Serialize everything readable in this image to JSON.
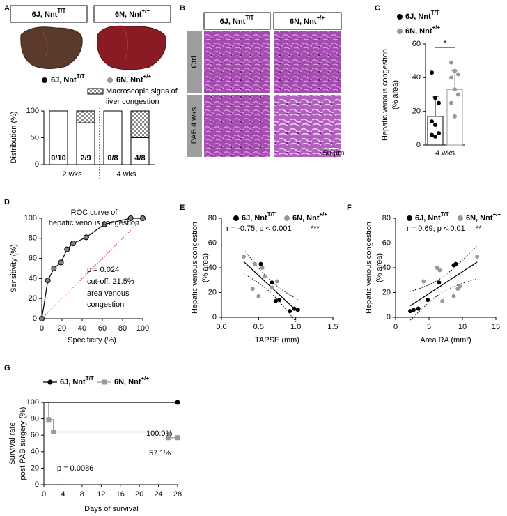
{
  "panel_a_images": {
    "labels": [
      {
        "name": "6J, Nnt",
        "sup": "T/T"
      },
      {
        "name": "6N, Nnt",
        "sup": "+/+"
      }
    ],
    "legend": [
      {
        "name": "6J, Nnt",
        "sup": "T/T",
        "color": "#000000"
      },
      {
        "name": "6N, Nnt",
        "sup": "+/+",
        "color": "#999999"
      }
    ]
  },
  "panel_b": {
    "panel": "B",
    "columns": [
      {
        "name": "6J, Nnt",
        "sup": "T/T"
      },
      {
        "name": "6N, Nnt",
        "sup": "+/+"
      }
    ],
    "rows": [
      "Ctrl",
      "PAB 4 wks"
    ],
    "scale_bar": "50 µm"
  },
  "chart_data": [
    {
      "panel": "A",
      "type": "stacked_bar",
      "ylabel": "Distribution (%)",
      "ylim": [
        0,
        100
      ],
      "yticks": [
        0,
        50,
        100
      ],
      "categories": [
        null,
        null,
        null,
        null
      ],
      "groups": [
        "2 wks",
        "4 wks"
      ],
      "series": [
        {
          "color": "#ffffff",
          "values": [
            100,
            77.8,
            100,
            50
          ]
        },
        {
          "name": [
            "Macroscopic signs of",
            "liver congestion"
          ],
          "color": "#999999",
          "pattern": "checker",
          "values": [
            0,
            22.2,
            0,
            50
          ],
          "value_labels": [
            "0/10",
            "2/9",
            "0/8",
            "4/8"
          ]
        }
      ]
    },
    {
      "panel": "C",
      "type": "bar",
      "ylabel": [
        "Hepatic venous congestion",
        "(% area)"
      ],
      "ylim": [
        0,
        60
      ],
      "yticks": [
        0,
        20,
        40,
        60
      ],
      "categories": [
        "4 wks"
      ],
      "series": [
        {
          "name": "6J, Nnt",
          "name_sup": "T/T",
          "color": "#000000",
          "values": [
            17
          ],
          "error": [
            12
          ],
          "points": [
            43,
            28,
            25,
            14,
            12,
            7,
            6,
            5
          ]
        },
        {
          "name": "6N, Nnt",
          "name_sup": "+/+",
          "color": "#999999",
          "values": [
            33
          ],
          "error": [
            11
          ],
          "points": [
            49,
            44,
            42,
            40,
            33,
            30,
            25,
            17
          ]
        }
      ],
      "annotations": [
        "*"
      ]
    },
    {
      "panel": "D",
      "type": "line",
      "title": [
        "ROC curve of",
        "hepatic venous congestion"
      ],
      "xlabel": "Specificity (%)",
      "ylabel": "Sensitivity (%)",
      "xlim": [
        0,
        100
      ],
      "ylim": [
        0,
        100
      ],
      "xticks": [
        0,
        20,
        40,
        60,
        80,
        100
      ],
      "yticks": [
        0,
        20,
        40,
        60,
        80,
        100
      ],
      "x": [
        0,
        6,
        12,
        19,
        25,
        31,
        44,
        62,
        88,
        100
      ],
      "series": [
        {
          "color": "#000000",
          "marker_color": "#808080",
          "values": [
            0,
            38,
            50,
            56,
            69,
            75,
            81,
            94,
            100,
            100
          ]
        }
      ],
      "reference_line": {
        "color": "#e03030"
      },
      "annotations": [
        "p = 0.024",
        "cut-off: 21.5%",
        "area venous",
        "congestion"
      ]
    },
    {
      "panel": "E",
      "type": "scatter",
      "xlabel": "TAPSE (mm)",
      "ylabel": [
        "Hepatic venous congestion",
        "(% area)"
      ],
      "xlim": [
        0,
        1.5
      ],
      "ylim": [
        0,
        80
      ],
      "xticks": [
        {
          "value": 0,
          "label": "0.0"
        },
        0.5,
        {
          "value": 1,
          "label": "1.0"
        },
        1.5
      ],
      "yticks": [
        0,
        20,
        40,
        60,
        80
      ],
      "series": [
        {
          "name": "6J, Nnt",
          "name_sup": "T/T",
          "color": "#000000",
          "x": [
            0.53,
            0.68,
            0.73,
            0.78,
            0.92,
            0.98,
            1.03
          ],
          "values": [
            43,
            28,
            13,
            14,
            5,
            7,
            6
          ]
        },
        {
          "name": "6N, Nnt",
          "name_sup": "+/+",
          "color": "#999999",
          "x": [
            0.3,
            0.42,
            0.45,
            0.5,
            0.55,
            0.58,
            0.68,
            0.75
          ],
          "values": [
            49,
            23,
            43,
            17,
            40,
            33,
            24,
            29
          ]
        }
      ],
      "fit": true,
      "annotations": [
        "r = -0.75; p < 0.001",
        "***"
      ]
    },
    {
      "panel": "F",
      "type": "scatter",
      "xlabel": "Area RA (mm²)",
      "ylabel": [
        "Hepatic venous congestion",
        "(% area)"
      ],
      "xlim": [
        0,
        15
      ],
      "ylim": [
        0,
        80
      ],
      "xticks": [
        0,
        5,
        10,
        15
      ],
      "yticks": [
        0,
        20,
        40,
        60,
        80
      ],
      "series": [
        {
          "name": "6J, Nnt",
          "name_sup": "T/T",
          "color": "#000000",
          "x": [
            2.2,
            2.7,
            3.4,
            4.8,
            6.5,
            8.7,
            9.0
          ],
          "values": [
            5,
            6,
            7,
            14,
            28,
            42,
            43
          ]
        },
        {
          "name": "6N, Nnt",
          "name_sup": "+/+",
          "color": "#999999",
          "x": [
            4.2,
            6.2,
            6.6,
            8.7,
            9.3,
            9.6,
            12.2,
            7.0
          ],
          "values": [
            29,
            40,
            38,
            17,
            23,
            25,
            49,
            13
          ]
        }
      ],
      "fit": true,
      "annotations": [
        "r = 0.69; p < 0.01",
        "**"
      ]
    },
    {
      "panel": "G",
      "type": "step",
      "xlabel": "Days of survival",
      "ylabel": [
        "Survival rate",
        "post PAB surgery (%)"
      ],
      "xlim": [
        0,
        28
      ],
      "ylim": [
        0,
        100
      ],
      "xticks": [
        0,
        4,
        8,
        12,
        16,
        20,
        24,
        28
      ],
      "yticks": [
        0,
        20,
        40,
        60,
        80,
        100
      ],
      "series": [
        {
          "name": "6N, Nnt",
          "name_sup": "+/+",
          "color": "#999999",
          "marker": "square",
          "x": [
            0,
            1,
            2,
            26,
            28
          ],
          "values": [
            100,
            79,
            64,
            57,
            57
          ]
        },
        {
          "name": "6J, Nnt",
          "name_sup": "T/T",
          "color": "#000000",
          "marker": "circle",
          "x": [
            0,
            28
          ],
          "values": [
            100,
            100
          ]
        }
      ],
      "annotations": [
        {
          "text": "100.0%",
          "color": "#000000"
        },
        {
          "text": "57.1%",
          "color": "#999999"
        },
        {
          "text": "p = 0.0086",
          "color": "#000000"
        }
      ]
    }
  ]
}
